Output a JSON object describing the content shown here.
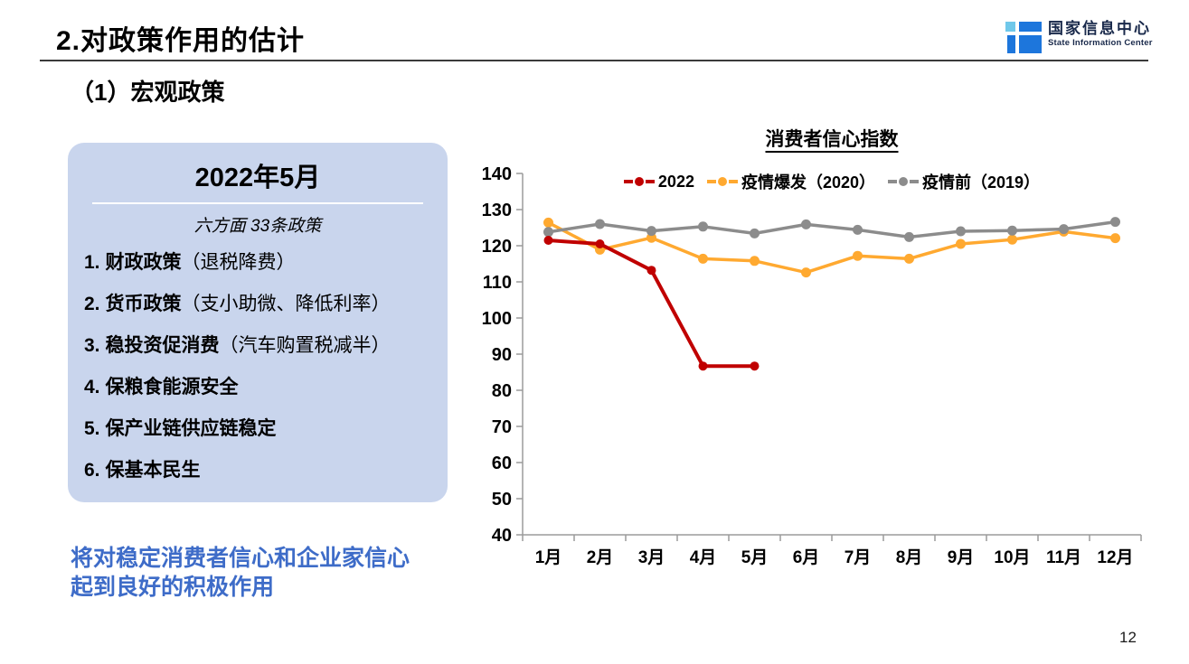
{
  "slide": {
    "title": "2.对政策作用的估计",
    "page_number": "12"
  },
  "logo": {
    "name_cn": "国家信息中心",
    "name_en": "State Information Center",
    "colors": {
      "light_blue": "#6FC8EA",
      "blue": "#1D76DC",
      "text": "#19294B"
    }
  },
  "section": {
    "subtitle": "（1）宏观政策"
  },
  "policy_card": {
    "title": "2022年5月",
    "subtitle": "六方面 33条政策",
    "bg_color": "#C9D5ED",
    "items": [
      {
        "num": "1.",
        "name": "财政政策",
        "note": "（退税降费）"
      },
      {
        "num": "2.",
        "name": "货币政策",
        "note": "（支小助微、降低利率）"
      },
      {
        "num": "3.",
        "name": "稳投资促消费",
        "note": "（汽车购置税减半）"
      },
      {
        "num": "4.",
        "name": "保粮食能源安全",
        "note": ""
      },
      {
        "num": "5.",
        "name": "保产业链供应链稳定",
        "note": ""
      },
      {
        "num": "6.",
        "name": "保基本民生",
        "note": ""
      }
    ]
  },
  "conclusion": {
    "line1": "将对稳定消费者信心和企业家信心",
    "line2": "起到良好的积极作用",
    "color": "#3E6CC8"
  },
  "chart_data": {
    "type": "line",
    "title": "消费者信心指数",
    "categories": [
      "1月",
      "2月",
      "3月",
      "4月",
      "5月",
      "6月",
      "7月",
      "8月",
      "9月",
      "10月",
      "11月",
      "12月"
    ],
    "ylim": [
      40,
      140
    ],
    "ytick_step": 10,
    "grid": false,
    "legend_position": "top",
    "axis_color": "#9b9b9b",
    "series": [
      {
        "name": "2022",
        "color": "#C00000",
        "values": [
          121.5,
          120.5,
          113.2,
          86.7,
          86.7
        ]
      },
      {
        "name": "疫情爆发（2020）",
        "color": "#FFA930",
        "values": [
          126.4,
          118.9,
          122.2,
          116.4,
          115.8,
          112.6,
          117.2,
          116.4,
          120.5,
          121.7,
          123.9,
          122.1
        ]
      },
      {
        "name": "疫情前（2019）",
        "color": "#8C8C8C",
        "values": [
          123.8,
          126.0,
          124.1,
          125.3,
          123.4,
          125.9,
          124.4,
          122.4,
          124.0,
          124.2,
          124.6,
          126.6
        ]
      }
    ]
  }
}
